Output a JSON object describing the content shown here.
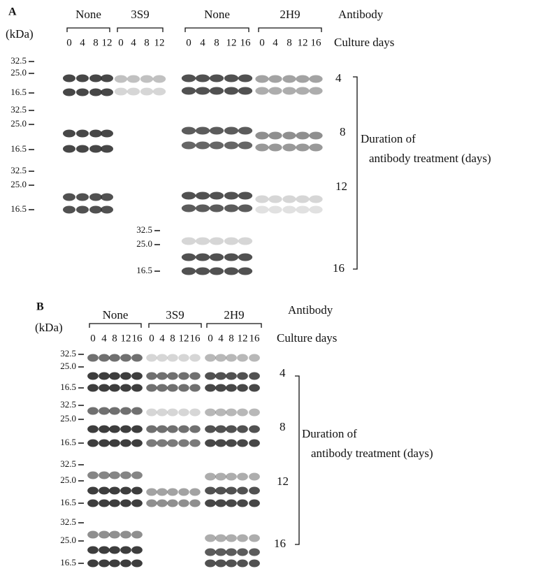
{
  "panel_a": {
    "label": "A",
    "unit": "(kDa)",
    "antibody_header": "Antibody",
    "culture_header": "Culture days",
    "groups": [
      {
        "name": "None",
        "lanes": [
          "0",
          "4",
          "8",
          "12"
        ]
      },
      {
        "name": "3S9",
        "lanes": [
          "0",
          "4",
          "8",
          "12"
        ]
      },
      {
        "name": "None",
        "lanes": [
          "0",
          "4",
          "8",
          "12",
          "16"
        ]
      },
      {
        "name": "2H9",
        "lanes": [
          "0",
          "4",
          "8",
          "12",
          "16"
        ]
      }
    ],
    "blots": [
      {
        "duration": "4",
        "markers": [
          "32.5",
          "25.0",
          "16.5"
        ]
      },
      {
        "duration": "8",
        "markers": [
          "32.5",
          "25.0",
          "16.5"
        ]
      },
      {
        "duration": "12",
        "markers": [
          "32.5",
          "25.0",
          "16.5"
        ]
      },
      {
        "duration": "16",
        "markers": [
          "32.5",
          "25.0",
          "16.5"
        ]
      }
    ],
    "duration_title": "Duration of",
    "duration_subtitle": "antibody treatment (days)"
  },
  "panel_b": {
    "label": "B",
    "unit": "(kDa)",
    "antibody_header": "Antibody",
    "culture_header": "Culture days",
    "groups": [
      {
        "name": "None",
        "lanes": [
          "0",
          "4",
          "8",
          "12",
          "16"
        ]
      },
      {
        "name": "3S9",
        "lanes": [
          "0",
          "4",
          "8",
          "12",
          "16"
        ]
      },
      {
        "name": "2H9",
        "lanes": [
          "0",
          "4",
          "8",
          "12",
          "16"
        ]
      }
    ],
    "blots": [
      {
        "duration": "4",
        "markers": [
          "32.5",
          "25.0",
          "16.5"
        ]
      },
      {
        "duration": "8",
        "markers": [
          "32.5",
          "25.0",
          "16.5"
        ]
      },
      {
        "duration": "12",
        "markers": [
          "32.5",
          "25.0",
          "16.5"
        ]
      },
      {
        "duration": "16",
        "markers": [
          "32.5",
          "25.0",
          "16.5"
        ]
      }
    ],
    "duration_title": "Duration of",
    "duration_subtitle": "antibody treatment (days)"
  }
}
